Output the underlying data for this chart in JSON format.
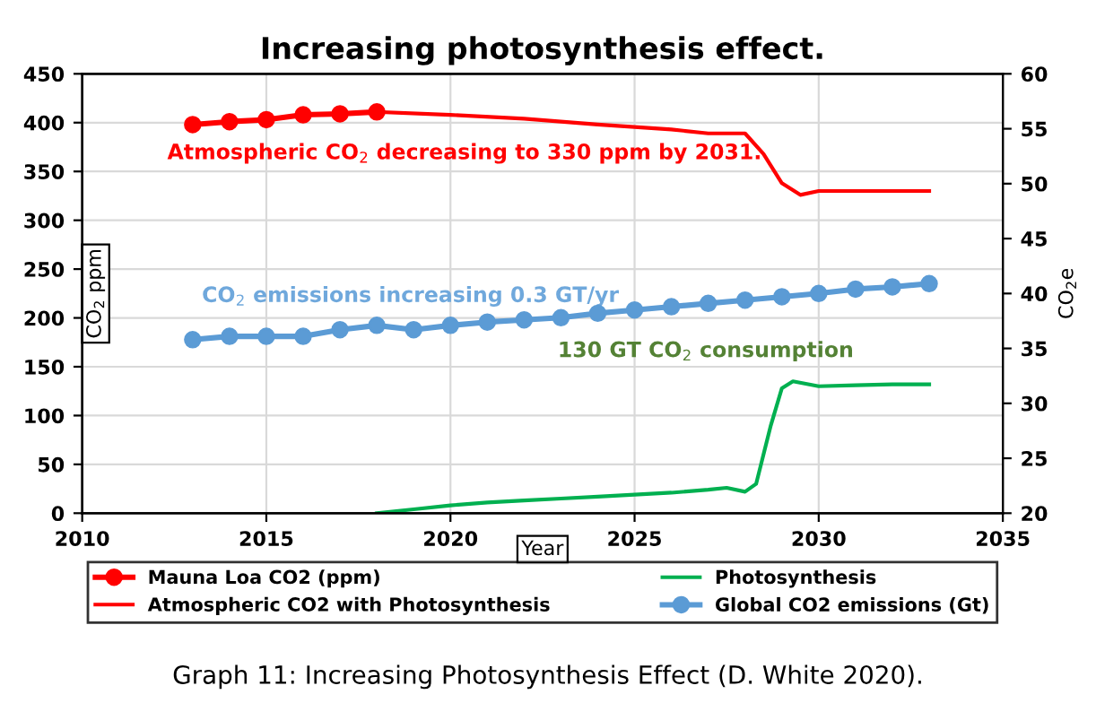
{
  "chart_data": {
    "type": "line",
    "title": "Increasing photosynthesis effect.",
    "xlabel": "Year",
    "ylabel": "CO$_{2}$ ppm",
    "y2label": "CO$_{2}$e",
    "xlim": [
      2010,
      2035
    ],
    "xticks": [
      2010,
      2015,
      2020,
      2025,
      2030,
      2035
    ],
    "ylim": [
      0,
      450
    ],
    "yticks": [
      0,
      50,
      100,
      150,
      200,
      250,
      300,
      350,
      400,
      450
    ],
    "y2lim": [
      20,
      60
    ],
    "y2ticks": [
      20,
      25,
      30,
      35,
      40,
      45,
      50,
      55,
      60
    ],
    "grid": true,
    "legend": "bottom",
    "series": [
      {
        "name": "Mauna Loa CO2 (ppm)",
        "color": "#ff0000",
        "marker": "circle",
        "x": [
          2013,
          2014,
          2015,
          2016,
          2017,
          2018
        ],
        "values": [
          398,
          401,
          403,
          408,
          409,
          411
        ]
      },
      {
        "name": "Atmospheric CO2 with Photosynthesis",
        "color": "#ff0000",
        "marker": "none",
        "x": [
          2018,
          2020,
          2022,
          2024,
          2026,
          2027,
          2027.5,
          2028,
          2028.5,
          2029,
          2029.5,
          2030,
          2031,
          2033
        ],
        "values": [
          411,
          408,
          404,
          398,
          393,
          389,
          389,
          389,
          368,
          338,
          326,
          330,
          330,
          330
        ]
      },
      {
        "name": "Photosynthesis",
        "color": "#00b050",
        "marker": "none",
        "x": [
          2018,
          2019,
          2020,
          2021,
          2022,
          2023,
          2024,
          2025,
          2026,
          2027,
          2027.5,
          2028,
          2028.3,
          2028.7,
          2029,
          2029.3,
          2030,
          2031,
          2032,
          2033
        ],
        "values": [
          0,
          4,
          8,
          11,
          13,
          15,
          17,
          19,
          21,
          24,
          26,
          22,
          30,
          90,
          128,
          135,
          130,
          131,
          132,
          132
        ]
      },
      {
        "name": "Global CO2 emissions (Gt)",
        "color": "#5b9bd5",
        "marker": "circle",
        "axis": "y2",
        "x": [
          2013,
          2014,
          2015,
          2016,
          2017,
          2018,
          2019,
          2020,
          2021,
          2022,
          2023,
          2024,
          2025,
          2026,
          2027,
          2028,
          2029,
          2030,
          2031,
          2032,
          2033
        ],
        "values": [
          35.8,
          36.1,
          36.1,
          36.1,
          36.7,
          37.1,
          36.7,
          37.1,
          37.4,
          37.6,
          37.8,
          38.2,
          38.5,
          38.8,
          39.1,
          39.4,
          39.7,
          40.0,
          40.4,
          40.6,
          40.9
        ]
      }
    ],
    "annotations": [
      {
        "text": "Atmospheric CO$_{2}$ decreasing to 330 ppm by 2031.",
        "x": 2028.5,
        "y": 368
      },
      "CO$_{2}$ emissions increasing 0.3 GT/yr",
      {
        "text": "130 GT CO$_{2}$ consumption",
        "x": 2029.3,
        "y": 135
      },
      "Graph 11: Increasing Photosynthesis Effect (D. White 2020)."
    ]
  }
}
